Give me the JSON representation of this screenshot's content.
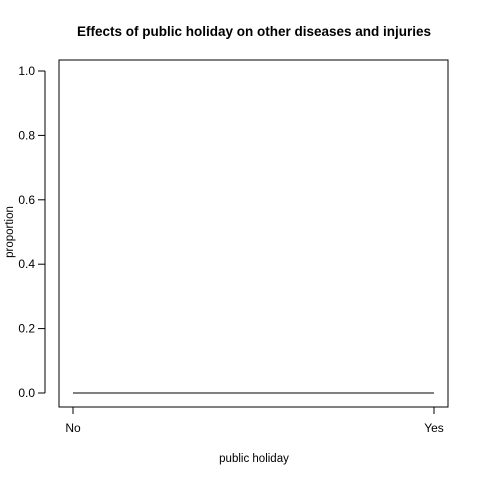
{
  "chart_data": {
    "type": "line",
    "title": "Effects of public holiday on other diseases and injuries",
    "xlabel": "public holiday",
    "ylabel": "proportion",
    "categories": [
      "No",
      "Yes"
    ],
    "ylim": [
      0,
      1
    ],
    "yticks": [
      "0.0",
      "0.2",
      "0.4",
      "0.6",
      "0.8",
      "1.0"
    ],
    "series": [
      {
        "values": [
          0,
          0
        ]
      }
    ],
    "grid": false,
    "legend": "none"
  }
}
